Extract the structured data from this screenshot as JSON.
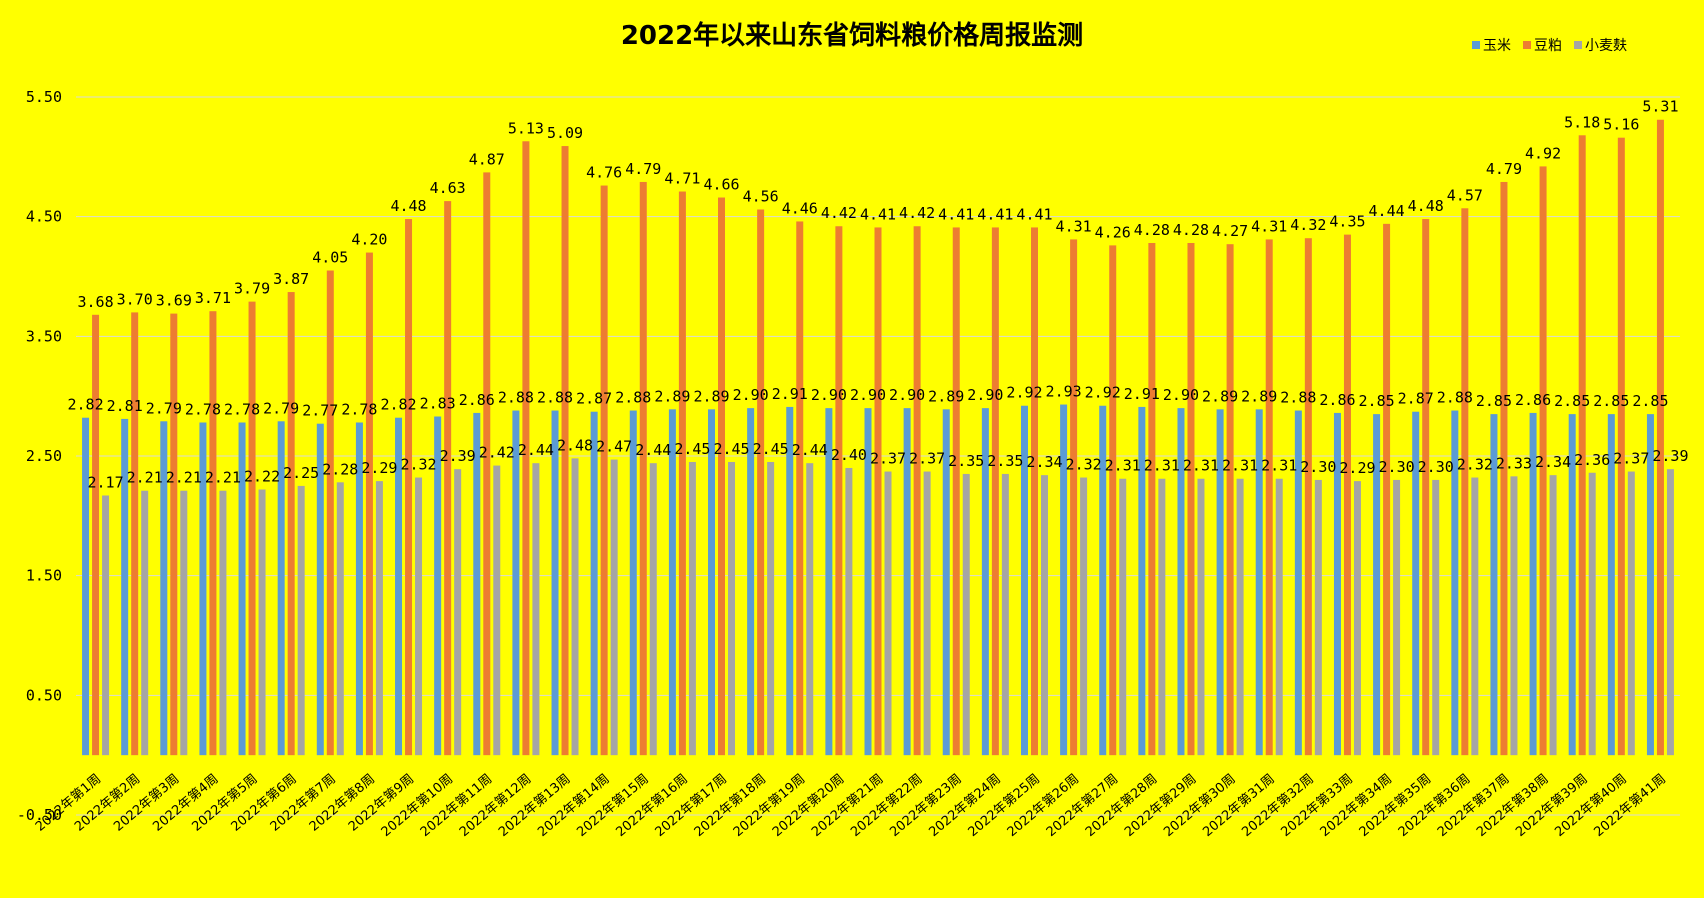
{
  "chart_data": {
    "type": "bar",
    "title": "2022年以来山东省饲料粮价格周报监测",
    "xlabel": "",
    "ylabel": "",
    "ylim": [
      -0.5,
      5.5
    ],
    "yticks": [
      "-0.50",
      "0.50",
      "1.50",
      "2.50",
      "3.50",
      "4.50",
      "5.50"
    ],
    "grid": true,
    "legend_position": "top-right",
    "categories": [
      "2022年第1周",
      "2022年第2周",
      "2022年第3周",
      "2022年第4周",
      "2022年第5周",
      "2022年第6周",
      "2022年第7周",
      "2022年第8周",
      "2022年第9周",
      "2022年第10周",
      "2022年第11周",
      "2022年第12周",
      "2022年第13周",
      "2022年第14周",
      "2022年第15周",
      "2022年第16周",
      "2022年第17周",
      "2022年第18周",
      "2022年第19周",
      "2022年第20周",
      "2022年第21周",
      "2022年第22周",
      "2022年第23周",
      "2022年第24周",
      "2022年第25周",
      "2022年第26周",
      "2022年第27周",
      "2022年第28周",
      "2022年第29周",
      "2022年第30周",
      "2022年第31周",
      "2022年第32周",
      "2022年第33周",
      "2022年第34周",
      "2022年第35周",
      "2022年第36周",
      "2022年第37周",
      "2022年第38周",
      "2022年第39周",
      "2022年第40周",
      "2022年第41周"
    ],
    "series": [
      {
        "name": "玉米",
        "color": "#5b9bd5",
        "values": [
          2.82,
          2.81,
          2.79,
          2.78,
          2.78,
          2.79,
          2.77,
          2.78,
          2.82,
          2.83,
          2.86,
          2.88,
          2.88,
          2.87,
          2.88,
          2.89,
          2.89,
          2.9,
          2.91,
          2.9,
          2.9,
          2.9,
          2.89,
          2.9,
          2.92,
          2.93,
          2.92,
          2.91,
          2.9,
          2.89,
          2.89,
          2.88,
          2.86,
          2.85,
          2.87,
          2.88,
          2.85,
          2.86,
          2.85,
          2.85,
          2.85
        ],
        "labels": [
          "2.82",
          "2.81",
          "2.79",
          "2.78",
          "2.78",
          "2.79",
          "2.77",
          "2.78",
          "2.82",
          "2.83",
          "2.86",
          "2.88",
          "2.88",
          "2.87",
          "2.88",
          "2.89",
          "2.89",
          "2.90",
          "2.91",
          "2.90",
          "2.90",
          "2.90",
          "2.89",
          "2.90",
          "2.92",
          "2.93",
          "2.92",
          "2.91",
          "2.90",
          "2.89",
          "2.89",
          "2.88",
          "2.86",
          "2.85",
          "2.87",
          "2.88",
          "2.85",
          "2.86",
          "2.85",
          "2.85",
          "2.85"
        ]
      },
      {
        "name": "豆粕",
        "color": "#ed7d31",
        "values": [
          3.68,
          3.7,
          3.69,
          3.71,
          3.79,
          3.87,
          4.05,
          4.2,
          4.48,
          4.63,
          4.87,
          5.13,
          5.09,
          4.76,
          4.79,
          4.71,
          4.66,
          4.56,
          4.46,
          4.42,
          4.41,
          4.42,
          4.41,
          4.41,
          4.41,
          4.31,
          4.26,
          4.28,
          4.28,
          4.27,
          4.31,
          4.32,
          4.35,
          4.44,
          4.48,
          4.57,
          4.79,
          4.92,
          5.18,
          5.16,
          5.31
        ],
        "labels": [
          "3.68",
          "3.70",
          "3.69",
          "3.71",
          "3.79",
          "3.87",
          "4.05",
          "4.20",
          "4.48",
          "4.63",
          "4.87",
          "5.13",
          "5.09",
          "4.76",
          "4.79",
          "4.71",
          "4.66",
          "4.56",
          "4.46",
          "4.42",
          "4.41",
          "4.42",
          "4.41",
          "4.41",
          "4.41",
          "4.31",
          "4.26",
          "4.28",
          "4.28",
          "4.27",
          "4.31",
          "4.32",
          "4.35",
          "4.44",
          "4.48",
          "4.57",
          "4.79",
          "4.92",
          "5.18",
          "5.16",
          "5.31"
        ]
      },
      {
        "name": "小麦麸",
        "color": "#a5a5a5",
        "values": [
          2.17,
          2.21,
          2.21,
          2.21,
          2.22,
          2.25,
          2.28,
          2.29,
          2.32,
          2.39,
          2.42,
          2.44,
          2.48,
          2.47,
          2.44,
          2.45,
          2.45,
          2.45,
          2.44,
          2.4,
          2.37,
          2.37,
          2.35,
          2.35,
          2.34,
          2.32,
          2.31,
          2.31,
          2.31,
          2.31,
          2.31,
          2.3,
          2.29,
          2.3,
          2.3,
          2.32,
          2.33,
          2.34,
          2.36,
          2.37,
          2.39
        ],
        "labels": [
          "2.17",
          "2.21",
          "2.21",
          "2.21",
          "2.22",
          "2.25",
          "2.28",
          "2.29",
          "2.32",
          "2.39",
          "2.42",
          "2.44",
          "2.48",
          "2.47",
          "2.44",
          "2.45",
          "2.45",
          "2.45",
          "2.44",
          "2.40",
          "2.37",
          "2.37",
          "2.35",
          "2.35",
          "2.34",
          "2.32",
          "2.31",
          "2.31",
          "2.31",
          "2.31",
          "2.31",
          "2.30",
          "2.29",
          "2.30",
          "2.30",
          "2.32",
          "2.33",
          "2.34",
          "2.36",
          "2.37",
          "2.39"
        ]
      }
    ]
  }
}
